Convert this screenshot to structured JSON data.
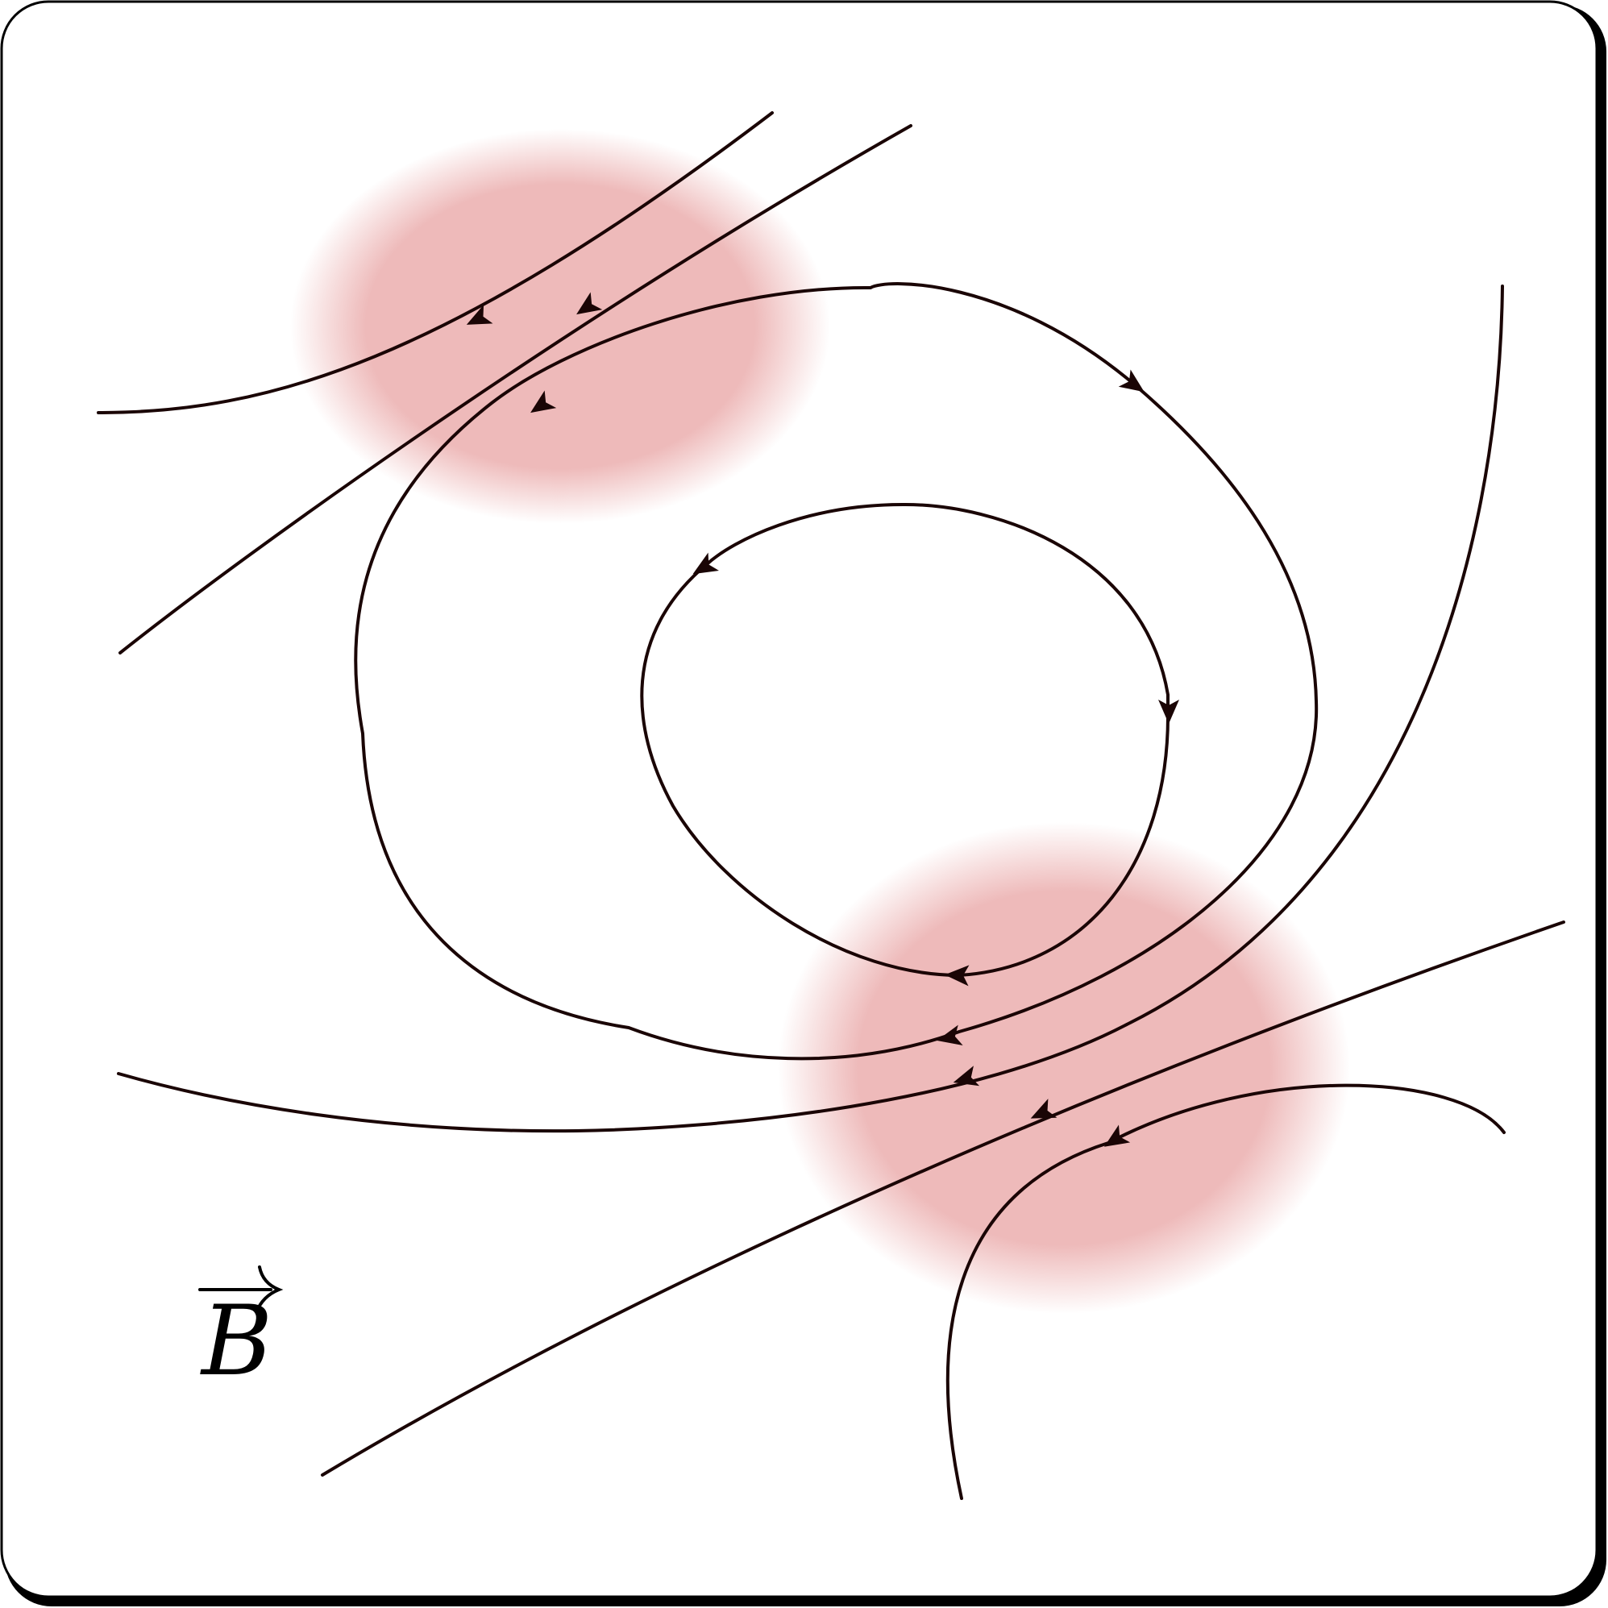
{
  "diagram": {
    "label_text": "B",
    "line_color": "#1a0505",
    "region_color": "#e58f8f",
    "label_vector_arrow": true
  }
}
